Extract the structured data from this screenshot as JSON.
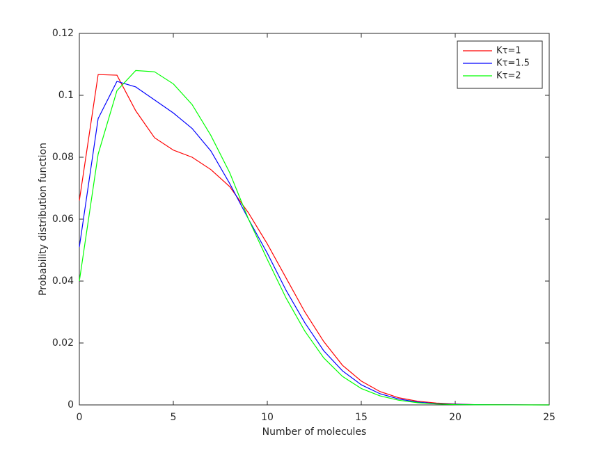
{
  "chart_data": {
    "type": "line",
    "xlabel": "Number of molecules",
    "ylabel": "Probability distribution function",
    "x": [
      0,
      1,
      2,
      3,
      4,
      5,
      6,
      7,
      8,
      9,
      10,
      11,
      12,
      13,
      14,
      15,
      16,
      17,
      18,
      19,
      20,
      21,
      22,
      23,
      24,
      25
    ],
    "series": [
      {
        "name": "Kτ=1",
        "color": "#ff0000",
        "values": [
          0.066,
          0.1067,
          0.1065,
          0.095,
          0.0863,
          0.0823,
          0.08,
          0.076,
          0.0705,
          0.062,
          0.052,
          0.041,
          0.03,
          0.0205,
          0.0128,
          0.0077,
          0.0043,
          0.0023,
          0.0012,
          0.0006,
          0.0003,
          0.0001,
          5e-05,
          2e-05,
          1e-05,
          0
        ]
      },
      {
        "name": "Kτ=1.5",
        "color": "#0000ff",
        "values": [
          0.051,
          0.0925,
          0.1045,
          0.1027,
          0.0985,
          0.0943,
          0.0893,
          0.082,
          0.0715,
          0.06,
          0.049,
          0.037,
          0.0265,
          0.0175,
          0.011,
          0.0065,
          0.0036,
          0.0019,
          0.0009,
          0.0004,
          0.0002,
          0.0001,
          4e-05,
          2e-05,
          1e-05,
          0
        ]
      },
      {
        "name": "Kτ=2",
        "color": "#00ff00",
        "values": [
          0.04,
          0.081,
          0.1015,
          0.108,
          0.1076,
          0.1037,
          0.097,
          0.087,
          0.075,
          0.06,
          0.047,
          0.0345,
          0.0238,
          0.0152,
          0.0092,
          0.0053,
          0.0029,
          0.0015,
          0.0007,
          0.0003,
          0.0001,
          5e-05,
          2e-05,
          1e-05,
          0,
          0
        ]
      }
    ],
    "xlim": [
      0,
      25
    ],
    "xticks": [
      0,
      5,
      10,
      15,
      20,
      25
    ],
    "ylim": [
      0,
      0.12
    ],
    "yticks": [
      0,
      0.02,
      0.04,
      0.06,
      0.08,
      0.1,
      0.12
    ],
    "legend": "top-right",
    "grid": false
  }
}
